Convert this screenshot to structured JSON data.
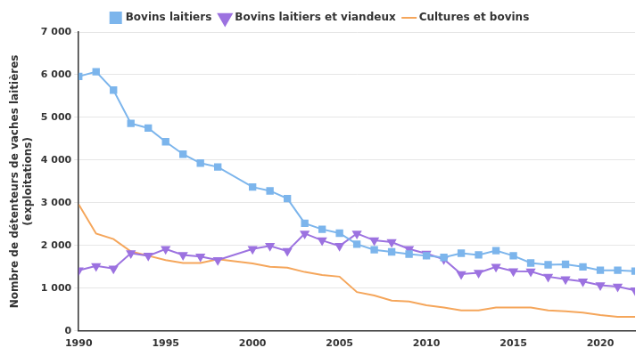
{
  "chart_data": {
    "type": "line",
    "ylabel": [
      "Nombre de détenteurs de vaches laitières",
      "(exploitations)"
    ],
    "x": [
      1990,
      1991,
      1992,
      1993,
      1994,
      1995,
      1996,
      1997,
      1998,
      2000,
      2001,
      2002,
      2003,
      2004,
      2005,
      2006,
      2007,
      2008,
      2009,
      2010,
      2011,
      2012,
      2013,
      2014,
      2015,
      2016,
      2017,
      2018,
      2019,
      2020,
      2021,
      2022
    ],
    "series": [
      {
        "name": "Bovins laitiers",
        "color": "#7cb5ec",
        "marker": "square",
        "values": [
          5960,
          6070,
          5640,
          4860,
          4750,
          4430,
          4140,
          3930,
          3840,
          3370,
          3280,
          3100,
          2520,
          2380,
          2290,
          2030,
          1900,
          1850,
          1800,
          1760,
          1720,
          1820,
          1780,
          1880,
          1760,
          1590,
          1550,
          1560,
          1500,
          1420,
          1420,
          1400
        ]
      },
      {
        "name": "Bovins laitiers et viandeux",
        "color": "#9c72e0",
        "marker": "triangle-down",
        "values": [
          1420,
          1520,
          1460,
          1820,
          1760,
          1920,
          1780,
          1740,
          1660,
          1920,
          1990,
          1870,
          2280,
          2120,
          1990,
          2280,
          2120,
          2080,
          1920,
          1810,
          1680,
          1330,
          1360,
          1500,
          1400,
          1390,
          1270,
          1210,
          1160,
          1070,
          1040,
          950
        ]
      },
      {
        "name": "Cultures et bovins",
        "color": "#f5a65b",
        "marker": "none",
        "values": [
          2960,
          2280,
          2150,
          1860,
          1760,
          1660,
          1590,
          1590,
          1680,
          1580,
          1500,
          1480,
          1380,
          1310,
          1270,
          910,
          830,
          710,
          690,
          600,
          550,
          480,
          480,
          550,
          550,
          550,
          480,
          460,
          430,
          370,
          330,
          330
        ]
      }
    ],
    "xlim": [
      1990,
      2022
    ],
    "xticks": [
      1990,
      1995,
      2000,
      2005,
      2010,
      2015,
      2020
    ],
    "ylim": [
      0,
      7000
    ],
    "yticks": [
      0,
      {
        "value": 1000,
        "label": "1 000"
      },
      {
        "value": 2000,
        "label": "2 000"
      },
      {
        "value": 3000,
        "label": "3 000"
      },
      {
        "value": 4000,
        "label": "4 000"
      },
      {
        "value": 5000,
        "label": "5 000"
      },
      {
        "value": 6000,
        "label": "6 000"
      },
      {
        "value": 7000,
        "label": "7 000"
      }
    ],
    "grid": true,
    "legend": "top"
  }
}
